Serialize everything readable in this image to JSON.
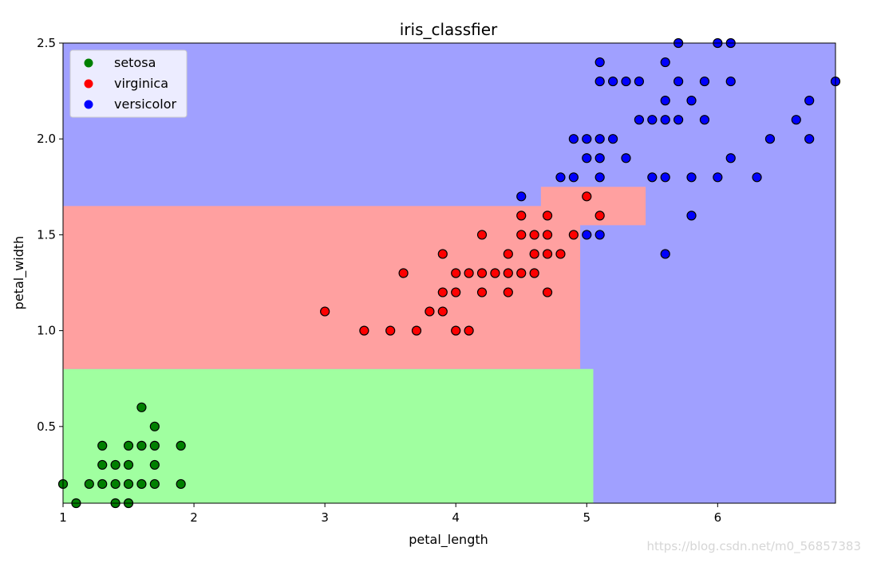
{
  "chart_data": {
    "type": "scatter",
    "title": "iris_classfier",
    "xlabel": "petal_length",
    "ylabel": "petal_width",
    "xlim": [
      1.0,
      6.9
    ],
    "ylim": [
      0.1,
      2.5
    ],
    "grid": false,
    "legend_position": "top-left",
    "x_ticks": [
      1,
      2,
      3,
      4,
      5,
      6
    ],
    "x_tick_labels": [
      "1",
      "2",
      "3",
      "4",
      "5",
      "6"
    ],
    "y_ticks": [
      0.5,
      1.0,
      1.5,
      2.0,
      2.5
    ],
    "y_tick_labels": [
      "0.5",
      "1.0",
      "1.5",
      "2.0",
      "2.5"
    ],
    "decision_regions": [
      {
        "class": "setosa",
        "color": "#a0ffa0",
        "x_range": [
          1.0,
          5.05
        ],
        "y_range": [
          0.1,
          0.8
        ]
      },
      {
        "class": "virginica",
        "color": "#ffa0a0",
        "x_range": [
          1.0,
          4.95
        ],
        "y_range": [
          0.8,
          1.65
        ]
      },
      {
        "class": "virginica",
        "color": "#ffa0a0",
        "x_range": [
          4.65,
          5.45
        ],
        "y_range": [
          1.55,
          1.75
        ]
      }
    ],
    "background_color": "#a0a0ff",
    "series": [
      {
        "name": "setosa",
        "color": "#008000",
        "points": [
          [
            1.0,
            0.2
          ],
          [
            1.1,
            0.1
          ],
          [
            1.2,
            0.2
          ],
          [
            1.3,
            0.2
          ],
          [
            1.3,
            0.3
          ],
          [
            1.3,
            0.4
          ],
          [
            1.4,
            0.1
          ],
          [
            1.4,
            0.2
          ],
          [
            1.4,
            0.3
          ],
          [
            1.5,
            0.1
          ],
          [
            1.5,
            0.2
          ],
          [
            1.5,
            0.3
          ],
          [
            1.5,
            0.4
          ],
          [
            1.6,
            0.2
          ],
          [
            1.6,
            0.4
          ],
          [
            1.6,
            0.6
          ],
          [
            1.7,
            0.2
          ],
          [
            1.7,
            0.3
          ],
          [
            1.7,
            0.4
          ],
          [
            1.7,
            0.5
          ],
          [
            1.9,
            0.2
          ],
          [
            1.9,
            0.4
          ]
        ]
      },
      {
        "name": "virginica",
        "color": "#ff0000",
        "points": [
          [
            3.0,
            1.1
          ],
          [
            3.3,
            1.0
          ],
          [
            3.5,
            1.0
          ],
          [
            3.6,
            1.3
          ],
          [
            3.7,
            1.0
          ],
          [
            3.8,
            1.1
          ],
          [
            3.9,
            1.1
          ],
          [
            3.9,
            1.2
          ],
          [
            3.9,
            1.4
          ],
          [
            4.0,
            1.0
          ],
          [
            4.0,
            1.2
          ],
          [
            4.0,
            1.3
          ],
          [
            4.1,
            1.0
          ],
          [
            4.1,
            1.3
          ],
          [
            4.2,
            1.2
          ],
          [
            4.2,
            1.3
          ],
          [
            4.2,
            1.5
          ],
          [
            4.3,
            1.3
          ],
          [
            4.4,
            1.2
          ],
          [
            4.4,
            1.3
          ],
          [
            4.4,
            1.4
          ],
          [
            4.5,
            1.3
          ],
          [
            4.5,
            1.5
          ],
          [
            4.5,
            1.6
          ],
          [
            4.6,
            1.3
          ],
          [
            4.6,
            1.4
          ],
          [
            4.6,
            1.5
          ],
          [
            4.7,
            1.2
          ],
          [
            4.7,
            1.4
          ],
          [
            4.7,
            1.5
          ],
          [
            4.7,
            1.6
          ],
          [
            4.8,
            1.4
          ],
          [
            4.9,
            1.5
          ],
          [
            5.0,
            1.7
          ],
          [
            5.1,
            1.6
          ]
        ]
      },
      {
        "name": "versicolor",
        "color": "#0000ff",
        "points": [
          [
            4.5,
            1.7
          ],
          [
            4.8,
            1.8
          ],
          [
            4.9,
            1.8
          ],
          [
            4.9,
            2.0
          ],
          [
            5.0,
            1.5
          ],
          [
            5.0,
            1.9
          ],
          [
            5.0,
            2.0
          ],
          [
            5.1,
            1.5
          ],
          [
            5.1,
            1.8
          ],
          [
            5.1,
            1.9
          ],
          [
            5.1,
            2.0
          ],
          [
            5.1,
            2.3
          ],
          [
            5.1,
            2.4
          ],
          [
            5.2,
            2.0
          ],
          [
            5.2,
            2.3
          ],
          [
            5.3,
            1.9
          ],
          [
            5.3,
            2.3
          ],
          [
            5.4,
            2.3
          ],
          [
            5.4,
            2.1
          ],
          [
            5.5,
            1.8
          ],
          [
            5.5,
            2.1
          ],
          [
            5.6,
            1.4
          ],
          [
            5.6,
            1.8
          ],
          [
            5.6,
            2.1
          ],
          [
            5.6,
            2.2
          ],
          [
            5.6,
            2.4
          ],
          [
            5.7,
            2.1
          ],
          [
            5.7,
            2.3
          ],
          [
            5.7,
            2.5
          ],
          [
            5.8,
            1.6
          ],
          [
            5.8,
            1.8
          ],
          [
            5.8,
            2.2
          ],
          [
            5.9,
            2.1
          ],
          [
            5.9,
            2.3
          ],
          [
            6.0,
            1.8
          ],
          [
            6.0,
            2.5
          ],
          [
            6.1,
            1.9
          ],
          [
            6.1,
            2.3
          ],
          [
            6.1,
            2.5
          ],
          [
            6.3,
            1.8
          ],
          [
            6.4,
            2.0
          ],
          [
            6.6,
            2.1
          ],
          [
            6.7,
            2.0
          ],
          [
            6.7,
            2.2
          ],
          [
            6.9,
            2.3
          ]
        ]
      }
    ]
  },
  "watermark": "https://blog.csdn.net/m0_56857383"
}
